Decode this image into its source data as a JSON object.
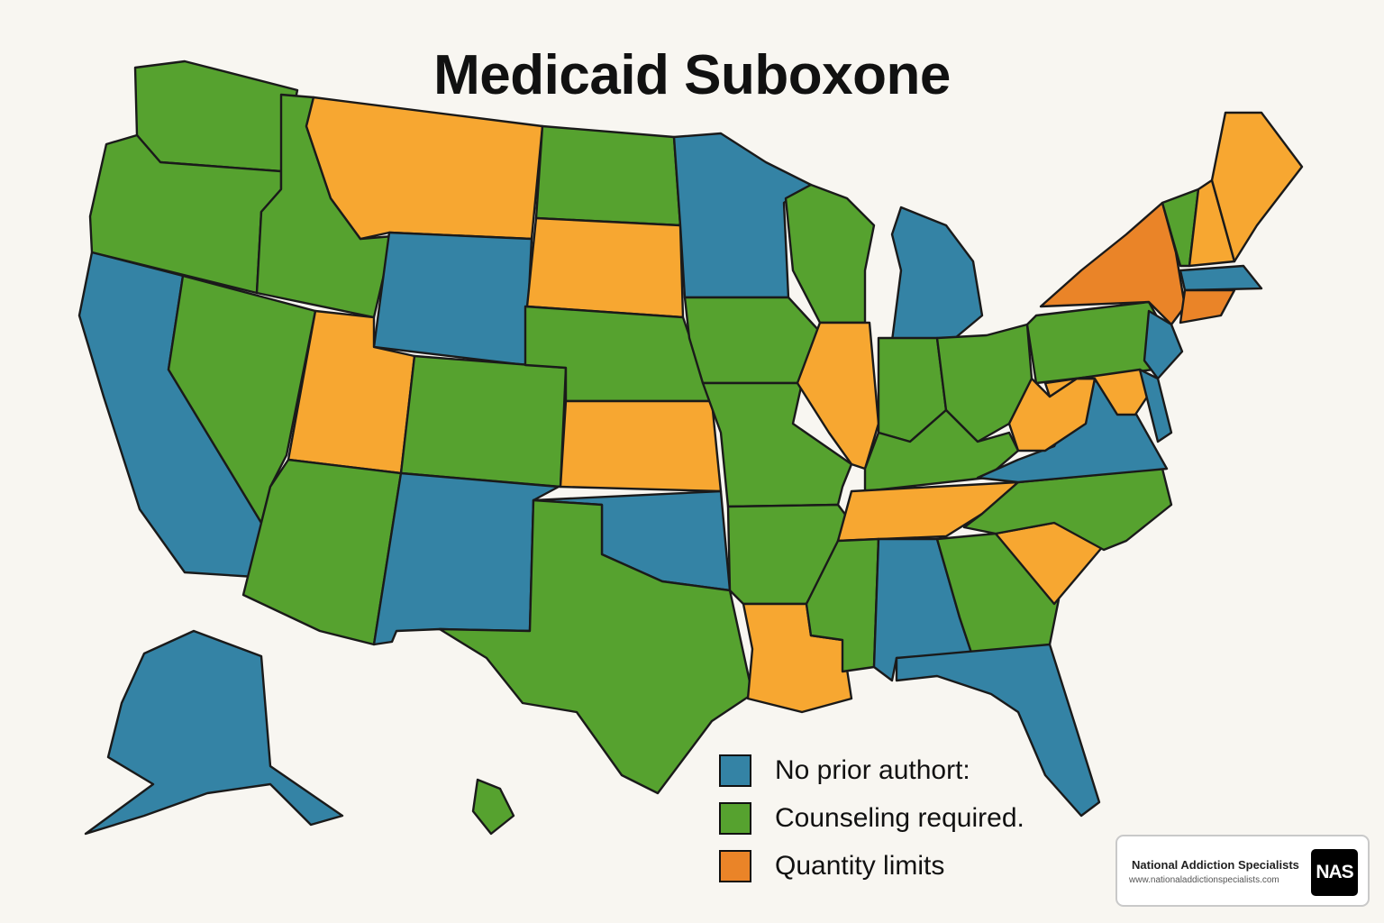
{
  "title": "Medicaid Suboxone",
  "colors": {
    "no_prior": "#3483a5",
    "counseling": "#56a22f",
    "quantity": "#f7a731",
    "quantity_dark": "#ea8428",
    "outline": "#1a1a1a",
    "background": "#f8f6f1"
  },
  "legend": [
    {
      "label": "No prior authort:",
      "color": "#3483a5",
      "category": "no_prior"
    },
    {
      "label": "Counseling required.",
      "color": "#56a22f",
      "category": "counseling"
    },
    {
      "label": "Quantity limits",
      "color": "#ea8428",
      "category": "quantity"
    }
  ],
  "states": [
    {
      "abbr": "WA",
      "category": "counseling"
    },
    {
      "abbr": "OR",
      "category": "counseling"
    },
    {
      "abbr": "CA",
      "category": "no_prior"
    },
    {
      "abbr": "ID",
      "category": "counseling"
    },
    {
      "abbr": "NV",
      "category": "counseling"
    },
    {
      "abbr": "MT",
      "category": "quantity"
    },
    {
      "abbr": "WY",
      "category": "no_prior"
    },
    {
      "abbr": "UT",
      "category": "quantity"
    },
    {
      "abbr": "AZ",
      "category": "counseling"
    },
    {
      "abbr": "CO",
      "category": "counseling"
    },
    {
      "abbr": "NM",
      "category": "no_prior"
    },
    {
      "abbr": "ND",
      "category": "counseling"
    },
    {
      "abbr": "SD",
      "category": "quantity"
    },
    {
      "abbr": "NE",
      "category": "counseling"
    },
    {
      "abbr": "KS",
      "category": "quantity"
    },
    {
      "abbr": "OK",
      "category": "no_prior"
    },
    {
      "abbr": "TX",
      "category": "counseling"
    },
    {
      "abbr": "MN",
      "category": "no_prior"
    },
    {
      "abbr": "IA",
      "category": "counseling"
    },
    {
      "abbr": "MO",
      "category": "counseling"
    },
    {
      "abbr": "AR",
      "category": "counseling"
    },
    {
      "abbr": "LA",
      "category": "quantity"
    },
    {
      "abbr": "WI",
      "category": "counseling"
    },
    {
      "abbr": "IL",
      "category": "quantity"
    },
    {
      "abbr": "MI",
      "category": "no_prior"
    },
    {
      "abbr": "IN",
      "category": "counseling"
    },
    {
      "abbr": "OH",
      "category": "counseling"
    },
    {
      "abbr": "KY",
      "category": "counseling"
    },
    {
      "abbr": "TN",
      "category": "quantity"
    },
    {
      "abbr": "MS",
      "category": "counseling"
    },
    {
      "abbr": "AL",
      "category": "no_prior"
    },
    {
      "abbr": "GA",
      "category": "counseling"
    },
    {
      "abbr": "FL",
      "category": "no_prior"
    },
    {
      "abbr": "SC",
      "category": "quantity"
    },
    {
      "abbr": "NC",
      "category": "counseling"
    },
    {
      "abbr": "VA",
      "category": "no_prior"
    },
    {
      "abbr": "WV",
      "category": "quantity"
    },
    {
      "abbr": "PA",
      "category": "counseling"
    },
    {
      "abbr": "NY",
      "category": "quantity_dark"
    },
    {
      "abbr": "VT",
      "category": "counseling"
    },
    {
      "abbr": "NH",
      "category": "quantity"
    },
    {
      "abbr": "ME",
      "category": "quantity"
    },
    {
      "abbr": "MA",
      "category": "no_prior"
    },
    {
      "abbr": "CT",
      "category": "quantity_dark"
    },
    {
      "abbr": "NJ",
      "category": "no_prior"
    },
    {
      "abbr": "MD",
      "category": "quantity"
    },
    {
      "abbr": "DE",
      "category": "no_prior"
    },
    {
      "abbr": "AK",
      "category": "no_prior"
    },
    {
      "abbr": "HI",
      "category": "counseling"
    }
  ],
  "brand": {
    "name": "National Addiction Specialists",
    "url": "www.nationaladdictionspecialists.com",
    "logo_text": "NAS"
  }
}
